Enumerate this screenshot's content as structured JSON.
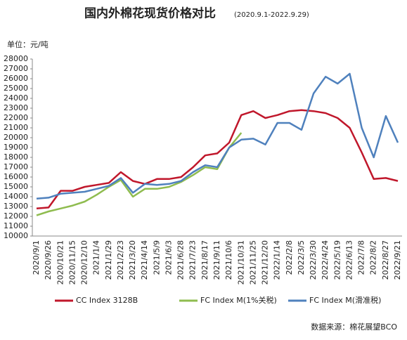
{
  "chart_data": {
    "type": "line",
    "title": "国内外棉花现货价格对比",
    "subtitle": "(2020.9.1-2022.9.29)",
    "y_label": "单位：元/吨",
    "source": "数据来源：棉花展望BCO",
    "categories": [
      "2020/9/1",
      "2020/9/26",
      "2020/10/21",
      "2020/11/15",
      "2020/12/10",
      "2021/1/4",
      "2021/1/29",
      "2021/2/23",
      "2021/3/20",
      "2021/4/14",
      "2021/5/9",
      "2021/6/3",
      "2021/6/28",
      "2021/7/23",
      "2021/8/17",
      "2021/9/11",
      "2021/10/6",
      "2021/10/31",
      "2021/11/25",
      "2021/12/20",
      "2022/1/14",
      "2022/2/8",
      "2022/3/5",
      "2022/3/30",
      "2022/4/24",
      "2022/5/19",
      "2022/6/13",
      "2022/7/8",
      "2022/8/2",
      "2022/8/27",
      "2022/9/21"
    ],
    "series": [
      {
        "name": "CC Index 3128B",
        "color": "#c0172b",
        "values": [
          12800,
          12900,
          14600,
          14600,
          15000,
          15200,
          15400,
          16500,
          15600,
          15300,
          15800,
          15800,
          16000,
          17000,
          18200,
          18400,
          19500,
          22300,
          22700,
          22000,
          22300,
          22700,
          22800,
          22700,
          22500,
          22000,
          21000,
          18500,
          15800,
          15900,
          15600
        ]
      },
      {
        "name": "FC Index M(1%关税)",
        "color": "#8fbc4f",
        "values": [
          12100,
          12500,
          12800,
          13100,
          13500,
          14200,
          15000,
          15700,
          14000,
          14800,
          14800,
          15000,
          15500,
          16200,
          17000,
          16800,
          19000,
          20500,
          null,
          null,
          null,
          null,
          null,
          null,
          null,
          null,
          null,
          null,
          null,
          null,
          null
        ]
      },
      {
        "name": "FC Index M(滑准税)",
        "color": "#4f81bd",
        "values": [
          13800,
          13900,
          14300,
          14400,
          14500,
          14800,
          15100,
          15900,
          14400,
          15300,
          15200,
          15300,
          15600,
          16500,
          17200,
          17000,
          19000,
          19800,
          19900,
          19300,
          21500,
          21500,
          20800,
          24500,
          26200,
          25500,
          26500,
          21000,
          18000,
          22200,
          19500
        ]
      }
    ],
    "ylim": [
      10000,
      28000
    ],
    "yticks": [
      10000,
      11000,
      12000,
      13000,
      14000,
      15000,
      16000,
      17000,
      18000,
      19000,
      20000,
      21000,
      22000,
      23000,
      24000,
      25000,
      26000,
      27000,
      28000
    ]
  }
}
